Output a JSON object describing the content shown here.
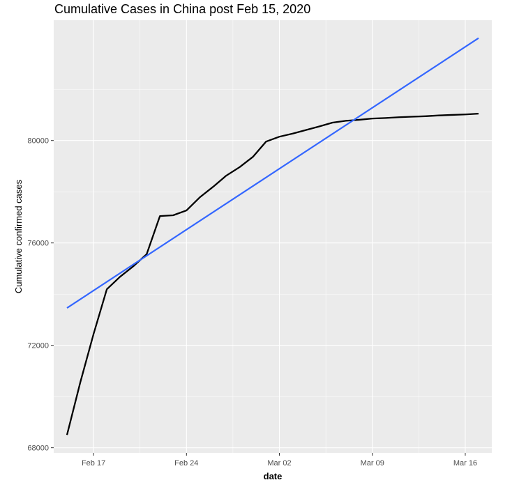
{
  "chart_data": {
    "type": "line",
    "title": "Cumulative Cases in China post Feb 15, 2020",
    "xlabel": "date",
    "ylabel": "Cumulative confirmed cases",
    "xlim": [
      "2020-02-14",
      "2020-03-18"
    ],
    "ylim": [
      67800,
      84700
    ],
    "x_ticks": [
      "2020-02-17",
      "2020-02-24",
      "2020-03-02",
      "2020-03-09",
      "2020-03-16"
    ],
    "x_tick_labels": [
      "Feb 17",
      "Feb 24",
      "Mar 02",
      "Mar 09",
      "Mar 16"
    ],
    "y_ticks": [
      68000,
      72000,
      76000,
      80000
    ],
    "y_tick_labels": [
      "68000",
      "72000",
      "76000",
      "80000"
    ],
    "grid": true,
    "legend": "none",
    "colors": {
      "panel": "#ebebeb",
      "grid": "#ffffff",
      "cases": "#000000",
      "trend": "#3366ff"
    },
    "series": [
      {
        "x": [
          "2020-02-15",
          "2020-02-16",
          "2020-02-17",
          "2020-02-18",
          "2020-02-19",
          "2020-02-20",
          "2020-02-21",
          "2020-02-22",
          "2020-02-23",
          "2020-02-24",
          "2020-02-25",
          "2020-02-26",
          "2020-02-27",
          "2020-02-28",
          "2020-02-29",
          "2020-03-01",
          "2020-03-02",
          "2020-03-03",
          "2020-03-04",
          "2020-03-05",
          "2020-03-06",
          "2020-03-07",
          "2020-03-08",
          "2020-03-09",
          "2020-03-10",
          "2020-03-11",
          "2020-03-12",
          "2020-03-13",
          "2020-03-14",
          "2020-03-15",
          "2020-03-16",
          "2020-03-17"
        ],
        "values": [
          68500,
          70550,
          72440,
          74190,
          74680,
          75090,
          75560,
          77050,
          77080,
          77270,
          77780,
          78190,
          78630,
          78960,
          79360,
          79960,
          80150,
          80270,
          80410,
          80550,
          80700,
          80770,
          80810,
          80860,
          80880,
          80910,
          80930,
          80950,
          80980,
          81000,
          81020,
          81050
        ]
      },
      {
        "type": "line",
        "method": "linear fit",
        "x": [
          "2020-02-15",
          "2020-03-17"
        ],
        "values": [
          73460,
          84000
        ]
      }
    ]
  }
}
